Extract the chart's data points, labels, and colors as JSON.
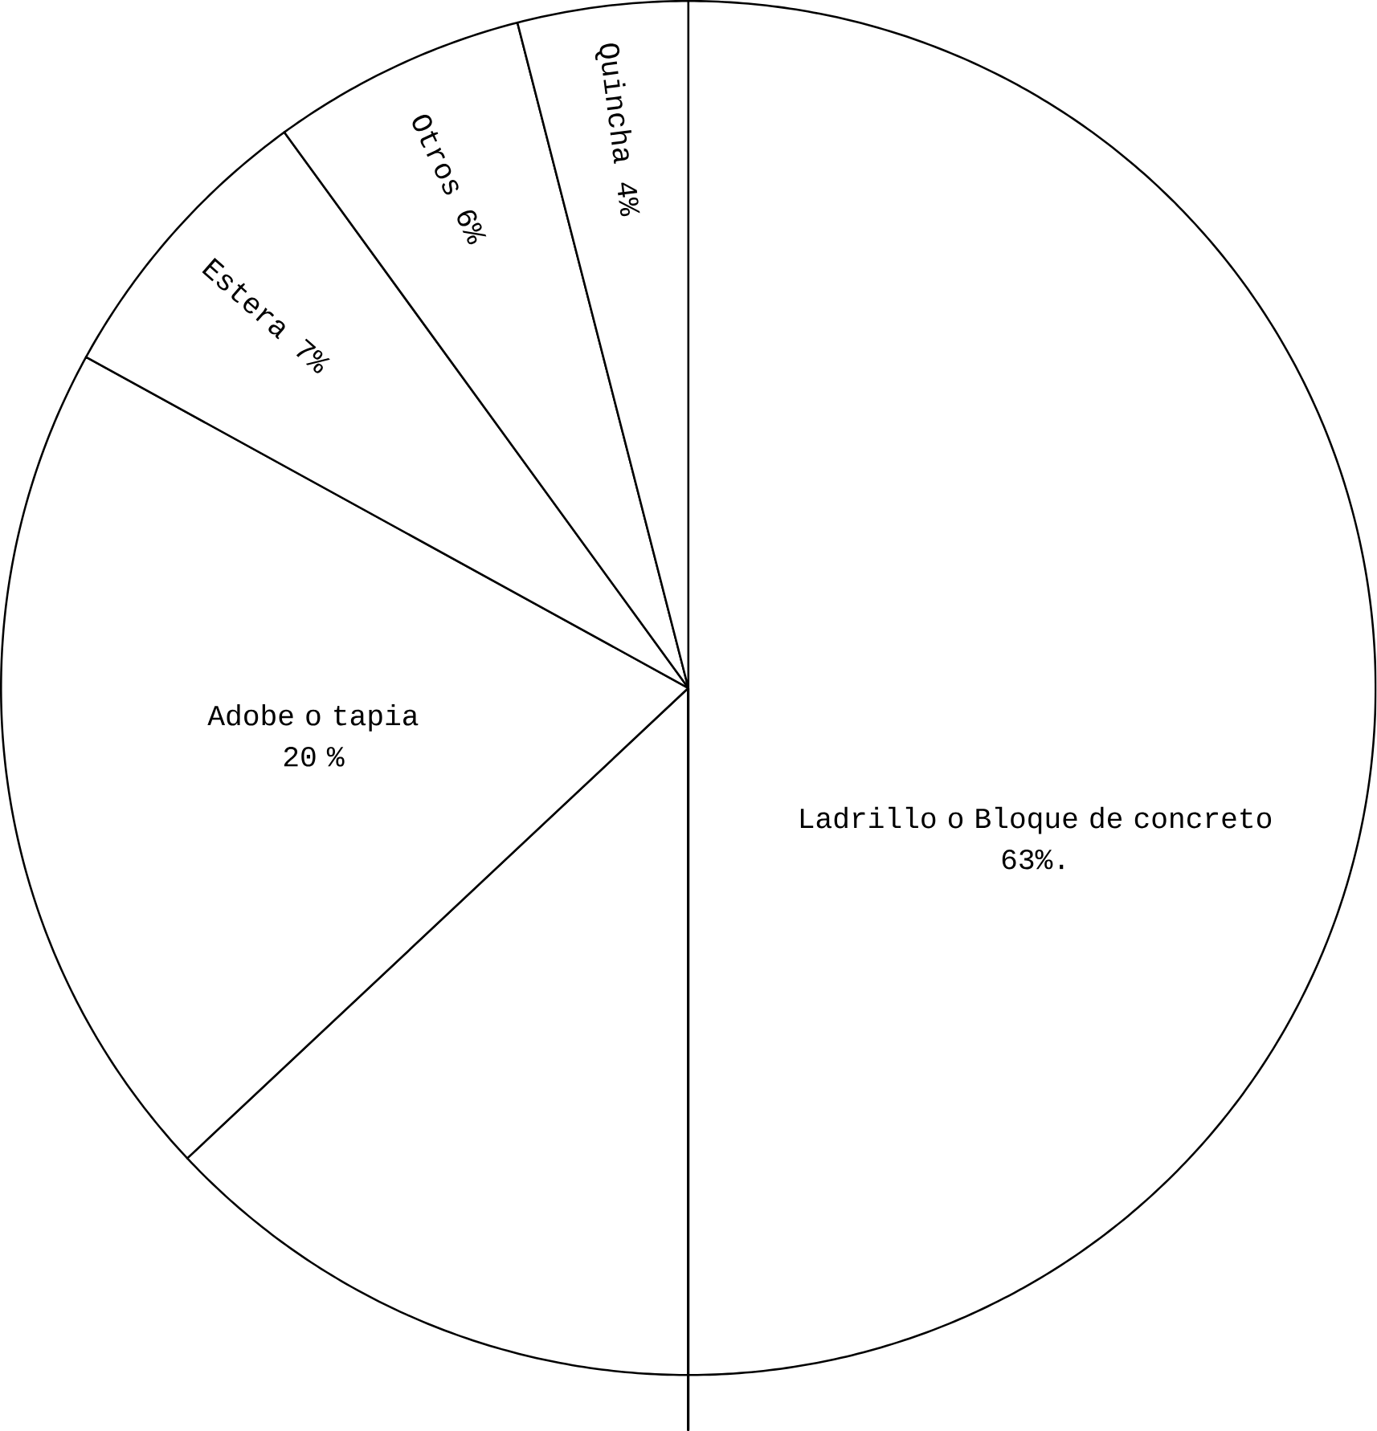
{
  "chart_data": {
    "type": "pie",
    "categories": [
      "Ladrillo o Bloque de concreto",
      "Adobe o tapia",
      "Estera",
      "Otros",
      "Quincha"
    ],
    "values": [
      63,
      20,
      7,
      6,
      4
    ],
    "value_labels": [
      "63%.",
      "20 %",
      "7%",
      "6%",
      "4%"
    ],
    "colors": [
      "#ffffff",
      "#ffffff",
      "#ffffff",
      "#ffffff",
      "#ffffff"
    ]
  }
}
